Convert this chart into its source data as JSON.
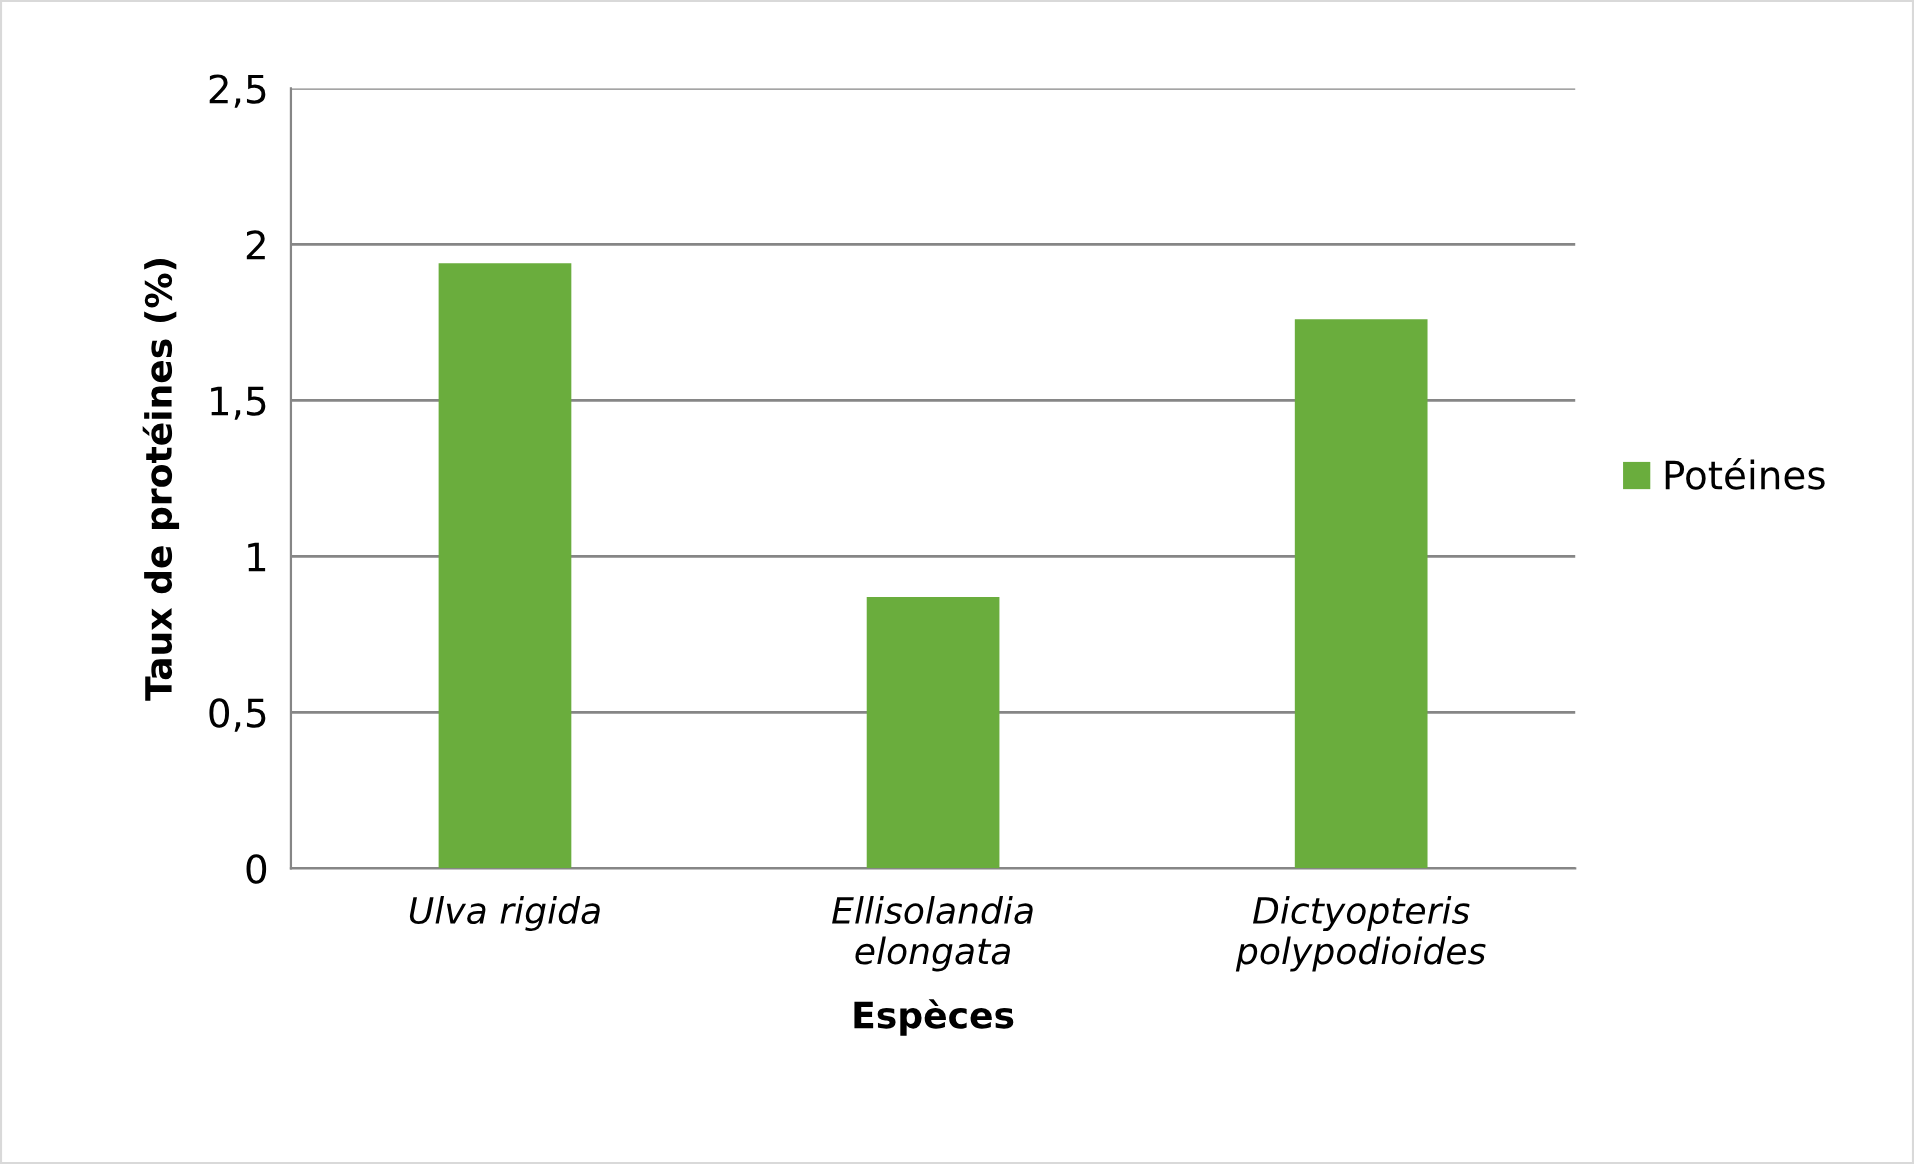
{
  "chart_data": {
    "type": "bar",
    "xlabel": "Espèces",
    "ylabel": "Taux de protéines (%)",
    "categories": [
      "Ulva rigida",
      "Ellisolandia\nelongata",
      "Dictyopteris\npolypodioides"
    ],
    "series": [
      {
        "name": "Potéines",
        "color": "#6aad3d",
        "values": [
          1.94,
          0.87,
          1.76
        ]
      }
    ],
    "ylim": [
      0,
      2.5
    ],
    "yticks": [
      0,
      {
        "value": 0.5,
        "label": "0,5"
      },
      1,
      {
        "value": 1.5,
        "label": "1,5"
      },
      2,
      {
        "value": 2.5,
        "label": "2,5"
      }
    ],
    "grid": "y",
    "legend": "right"
  }
}
